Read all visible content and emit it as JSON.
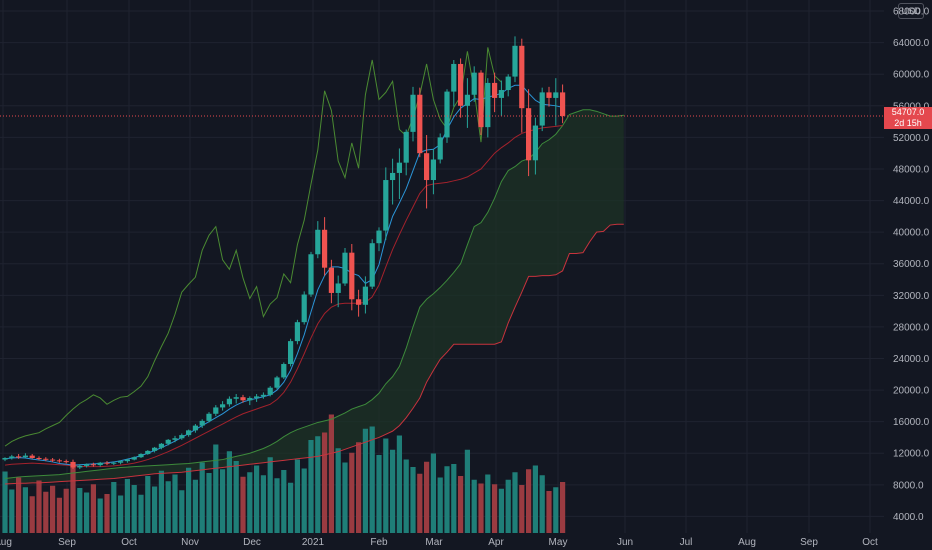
{
  "currency": "USD",
  "last_price": "54707.0",
  "countdown": "2d 15h",
  "colors": {
    "background": "#131722",
    "grid": "#1f2330",
    "up": "#26a69a",
    "down": "#ef5350",
    "volume_up": "#1f7e78",
    "volume_down": "#9a3b41",
    "tenkan": "#2b95d8",
    "kijun": "#a3222c",
    "chikou": "#4a8a32",
    "span_a": "#3d8a3b",
    "span_b": "#c7333d",
    "cloud": "#1e3325",
    "price_line": "#e4484e"
  },
  "chart_data": {
    "type": "candlestick",
    "title": "",
    "xlabel": "",
    "ylabel": "",
    "ylim": [
      1900,
      69400
    ],
    "grid": true,
    "y_ticks": [
      "4000.0",
      "8000.0",
      "12000.0",
      "16000.0",
      "20000.0",
      "24000.0",
      "28000.0",
      "32000.0",
      "36000.0",
      "40000.0",
      "44000.0",
      "48000.0",
      "52000.0",
      "56000.0",
      "60000.0",
      "64000.0",
      "68000.0"
    ],
    "x_ticks": [
      "Aug",
      "Sep",
      "Oct",
      "Nov",
      "Dec",
      "2021",
      "Feb",
      "Mar",
      "Apr",
      "May",
      "Jun",
      "Jul",
      "Aug",
      "Sep",
      "Oct"
    ],
    "series_candles": [
      [
        11200,
        11500,
        11000,
        11400
      ],
      [
        11400,
        11800,
        11200,
        11600
      ],
      [
        11600,
        11900,
        11300,
        11500
      ],
      [
        11500,
        12000,
        11400,
        11700
      ],
      [
        11700,
        11900,
        11300,
        11400
      ],
      [
        11400,
        11600,
        11100,
        11300
      ],
      [
        11300,
        11500,
        11000,
        11200
      ],
      [
        11200,
        11400,
        10900,
        11100
      ],
      [
        11100,
        11300,
        10800,
        11000
      ],
      [
        11000,
        11200,
        10700,
        10900
      ],
      [
        10900,
        11200,
        10000,
        10200
      ],
      [
        10200,
        10600,
        10000,
        10400
      ],
      [
        10400,
        10700,
        10200,
        10600
      ],
      [
        10600,
        10800,
        10300,
        10500
      ],
      [
        10500,
        10900,
        10300,
        10800
      ],
      [
        10800,
        11000,
        10500,
        10700
      ],
      [
        10700,
        10900,
        10500,
        10800
      ],
      [
        10800,
        11100,
        10600,
        11000
      ],
      [
        11000,
        11300,
        10800,
        11200
      ],
      [
        11200,
        11600,
        11100,
        11500
      ],
      [
        11500,
        12000,
        11400,
        11900
      ],
      [
        11900,
        12400,
        11800,
        12300
      ],
      [
        12300,
        12800,
        12100,
        12700
      ],
      [
        12700,
        13300,
        12500,
        13200
      ],
      [
        13200,
        13800,
        13000,
        13700
      ],
      [
        13700,
        14200,
        13400,
        13900
      ],
      [
        13900,
        14500,
        13700,
        14300
      ],
      [
        14300,
        15000,
        14100,
        14900
      ],
      [
        14900,
        15700,
        14600,
        15500
      ],
      [
        15500,
        16300,
        15200,
        16100
      ],
      [
        16100,
        17200,
        15900,
        17000
      ],
      [
        17000,
        18100,
        16700,
        17800
      ],
      [
        17800,
        18600,
        17400,
        18200
      ],
      [
        18200,
        19200,
        17900,
        18900
      ],
      [
        18900,
        19500,
        18300,
        19100
      ],
      [
        19100,
        19400,
        18400,
        18700
      ],
      [
        18700,
        19200,
        18100,
        19000
      ],
      [
        19000,
        19500,
        18500,
        19200
      ],
      [
        19200,
        19700,
        18900,
        19400
      ],
      [
        19400,
        20500,
        19200,
        20300
      ],
      [
        20300,
        21800,
        20100,
        21600
      ],
      [
        21600,
        23500,
        21400,
        23300
      ],
      [
        23300,
        26500,
        23000,
        26200
      ],
      [
        26200,
        28900,
        25800,
        28600
      ],
      [
        28600,
        32500,
        28300,
        32100
      ],
      [
        32100,
        37500,
        31800,
        37200
      ],
      [
        37200,
        41400,
        36700,
        40300
      ],
      [
        40300,
        41900,
        34500,
        35500
      ],
      [
        35500,
        36500,
        31000,
        32300
      ],
      [
        32300,
        34500,
        30500,
        33500
      ],
      [
        33500,
        38000,
        33200,
        37400
      ],
      [
        37400,
        38500,
        30100,
        31500
      ],
      [
        31500,
        32700,
        29300,
        30800
      ],
      [
        30800,
        34400,
        29700,
        33100
      ],
      [
        33100,
        39100,
        32800,
        38600
      ],
      [
        38600,
        40600,
        37600,
        40200
      ],
      [
        40200,
        48200,
        39000,
        46600
      ],
      [
        46600,
        49300,
        43500,
        47500
      ],
      [
        47500,
        50600,
        44200,
        48800
      ],
      [
        48800,
        53000,
        47200,
        52700
      ],
      [
        52700,
        58400,
        51500,
        57400
      ],
      [
        57400,
        58300,
        49500,
        50000
      ],
      [
        50000,
        52300,
        43000,
        46600
      ],
      [
        46600,
        50500,
        44800,
        49200
      ],
      [
        49200,
        52500,
        48700,
        52000
      ],
      [
        52000,
        58100,
        51300,
        57800
      ],
      [
        57800,
        61800,
        55900,
        61300
      ],
      [
        61300,
        62000,
        54500,
        56000
      ],
      [
        56000,
        59500,
        53200,
        57400
      ],
      [
        57400,
        61000,
        56500,
        60200
      ],
      [
        60200,
        60500,
        52300,
        53300
      ],
      [
        53300,
        59500,
        52000,
        58900
      ],
      [
        58900,
        60200,
        55200,
        57000
      ],
      [
        57000,
        59200,
        54700,
        58000
      ],
      [
        58000,
        60000,
        57200,
        59700
      ],
      [
        59700,
        64800,
        59000,
        63600
      ],
      [
        63600,
        64500,
        52600,
        55700
      ],
      [
        55700,
        58100,
        47100,
        49100
      ],
      [
        49100,
        54500,
        47300,
        53500
      ],
      [
        53500,
        58300,
        52800,
        57700
      ],
      [
        57700,
        58400,
        55900,
        57000
      ],
      [
        57000,
        59500,
        53500,
        57700
      ],
      [
        57700,
        58700,
        53800,
        54707
      ]
    ],
    "volume": [
      8200,
      5800,
      7400,
      6100,
      4900,
      7000,
      5500,
      6300,
      4700,
      5900,
      9100,
      6000,
      5400,
      6500,
      4600,
      5200,
      6800,
      5000,
      7200,
      6400,
      5100,
      7600,
      6200,
      8300,
      6900,
      7800,
      5700,
      8700,
      7100,
      9400,
      8000,
      11800,
      8500,
      10900,
      9600,
      7500,
      8100,
      9000,
      7700,
      10100,
      7300,
      8400,
      6700,
      9800,
      8600,
      12400,
      12900,
      13400,
      15800,
      11300,
      9400,
      10700,
      12100,
      13900,
      14200,
      10400,
      12600,
      11100,
      13000,
      9800,
      8800,
      7900,
      9500,
      10600,
      7400,
      8900,
      9200,
      7600,
      11100,
      7100,
      6600,
      7800,
      6500,
      5900,
      7100,
      8100,
      6400,
      8500,
      9000,
      7700,
      5600,
      6100,
      6800
    ],
    "tenkan": [
      11300,
      11400,
      11450,
      11400,
      11250,
      11150,
      11050,
      10900,
      10700,
      10600,
      10500,
      10550,
      10600,
      10650,
      10700,
      10800,
      10900,
      11050,
      11250,
      11450,
      11700,
      12000,
      12350,
      12700,
      13100,
      13550,
      14000,
      14500,
      15000,
      15500,
      16000,
      16500,
      17000,
      17600,
      18100,
      18500,
      18750,
      18950,
      19150,
      19400,
      20000,
      21000,
      22500,
      24600,
      27000,
      29900,
      32700,
      34500,
      35600,
      35600,
      35400,
      34800,
      34500,
      33500,
      34000,
      35900,
      39300,
      42000,
      43700,
      45500,
      47800,
      50100,
      50400,
      50500,
      51100,
      53000,
      54600,
      55700,
      56300,
      56900,
      56800,
      57100,
      57300,
      57600,
      58200,
      58600,
      58600,
      57600,
      56700,
      56200,
      56100,
      56000,
      55800
    ],
    "kijun": [
      10500,
      10600,
      10650,
      10700,
      10750,
      10700,
      10650,
      10600,
      10550,
      10500,
      10400,
      10350,
      10300,
      10300,
      10300,
      10350,
      10400,
      10500,
      10600,
      10750,
      10950,
      11200,
      11500,
      11850,
      12200,
      12600,
      13000,
      13450,
      13900,
      14350,
      14800,
      15250,
      15700,
      16150,
      16600,
      17000,
      17300,
      17600,
      17900,
      18200,
      18800,
      19700,
      21000,
      22700,
      24600,
      26600,
      28400,
      29700,
      30500,
      30900,
      31000,
      31000,
      31000,
      31100,
      31800,
      33300,
      35600,
      37800,
      39700,
      41500,
      43200,
      44900,
      45900,
      46100,
      46200,
      46300,
      46500,
      46700,
      47000,
      47500,
      48000,
      49000,
      50000,
      50700,
      51300,
      52000,
      52500,
      52800,
      53000,
      53200,
      53300,
      53400,
      53500
    ],
    "chikou": [
      12900,
      13500,
      13900,
      14200,
      14400,
      14600,
      15100,
      15500,
      15900,
      16800,
      17600,
      18300,
      18800,
      19400,
      19000,
      18200,
      18700,
      19100,
      19200,
      19800,
      20500,
      21700,
      23700,
      25500,
      27200,
      29600,
      32400,
      33400,
      34300,
      37700,
      39600,
      40700,
      36500,
      35300,
      37700,
      34200,
      31600,
      33100,
      29300,
      30900,
      31700,
      34700,
      33600,
      38400,
      41500,
      46100,
      50400,
      57900,
      55400,
      49000,
      46900,
      51300,
      48100,
      57400,
      61800,
      56800,
      57700,
      59100,
      53000,
      52200,
      54500,
      57400,
      61300,
      56800,
      54300,
      53100,
      55800,
      57200,
      62900,
      57900,
      51400,
      63400,
      59800,
      59000
    ],
    "span_a": [
      8800,
      8900,
      9000,
      9050,
      9100,
      9150,
      9200,
      9250,
      9300,
      9400,
      9500,
      9600,
      9700,
      9800,
      9900,
      10000,
      10100,
      10200,
      10250,
      10300,
      10350,
      10400,
      10450,
      10500,
      10550,
      10600,
      10650,
      10700,
      10800,
      10900,
      11000,
      11100,
      11200,
      11400,
      11600,
      11800,
      12000,
      12300,
      12600,
      13000,
      13500,
      14100,
      14600,
      15000,
      15300,
      15600,
      15900,
      16100,
      16300,
      16700,
      17100,
      17600,
      17900,
      18200,
      18800,
      19600,
      20800,
      21700,
      23000,
      25300,
      28000,
      30500,
      31500,
      32200,
      33000,
      33900,
      34900,
      36000,
      38400,
      40700,
      41200,
      42500,
      44300,
      46400,
      47800,
      48300,
      49000,
      49300,
      50100,
      51200,
      51700,
      52400,
      53500,
      54900,
      55200,
      55500,
      55500,
      55300,
      55000,
      54700,
      54700,
      54800
    ],
    "span_b": [
      8100,
      8150,
      8200,
      8200,
      8250,
      8250,
      8300,
      8350,
      8400,
      8450,
      8500,
      8550,
      8600,
      8650,
      8700,
      8750,
      8800,
      8900,
      9000,
      9100,
      9200,
      9300,
      9400,
      9450,
      9500,
      9550,
      9600,
      9700,
      9800,
      9900,
      10000,
      10100,
      10200,
      10300,
      10400,
      10500,
      10600,
      10700,
      10800,
      10900,
      11000,
      11100,
      11200,
      11300,
      11400,
      11500,
      11600,
      11800,
      12000,
      12200,
      12500,
      12800,
      13100,
      13400,
      13700,
      14000,
      14400,
      14800,
      15500,
      16500,
      17700,
      19000,
      21000,
      22500,
      23900,
      24800,
      25800,
      25800,
      25800,
      25800,
      25800,
      25800,
      25800,
      26100,
      28500,
      30500,
      32400,
      34400,
      34400,
      34500,
      34500,
      34600,
      35100,
      37300,
      37300,
      37400,
      38800,
      40000,
      40100,
      40900,
      41000,
      41000
    ]
  }
}
